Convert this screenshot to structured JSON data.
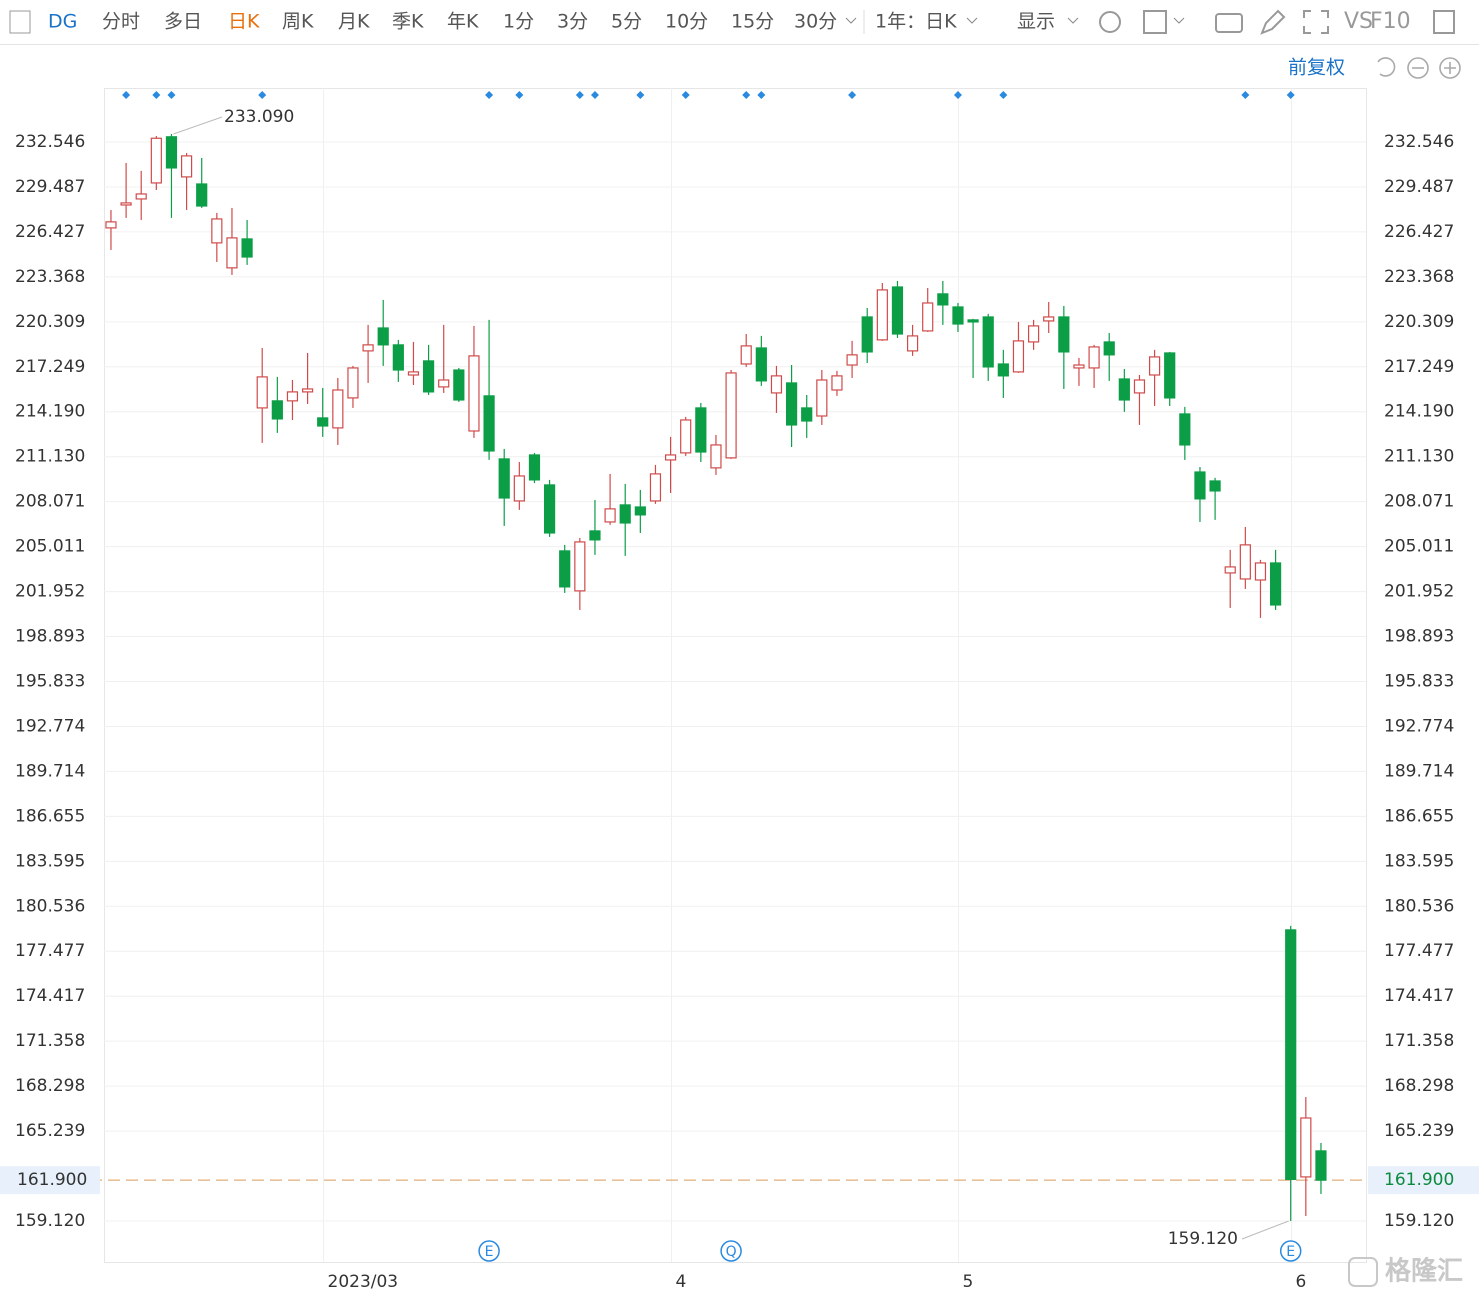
{
  "toolbar": {
    "symbol": "DG",
    "periods": [
      "分时",
      "多日",
      "日K",
      "周K",
      "月K",
      "季K",
      "年K",
      "1分",
      "3分",
      "5分",
      "10分",
      "15分",
      "30分"
    ],
    "range": "1年：日K",
    "display": "显示",
    "vs": "VS",
    "f10": "F10",
    "adjust": "前复权"
  },
  "watermark": "格隆汇",
  "chart_data": {
    "type": "candlestick",
    "categories": [
      null,
      null,
      null,
      null,
      null,
      null,
      null,
      null,
      null,
      null,
      null,
      null,
      null,
      null,
      "2023/03",
      null,
      null,
      null,
      null,
      null,
      null,
      null,
      null,
      null,
      null,
      null,
      null,
      null,
      null,
      null,
      null,
      null,
      null,
      null,
      null,
      null,
      null,
      "4",
      null,
      null,
      null,
      null,
      null,
      null,
      null,
      null,
      null,
      null,
      null,
      null,
      null,
      null,
      null,
      null,
      null,
      null,
      "5",
      null,
      null,
      null,
      null,
      null,
      null,
      null,
      null,
      null,
      null,
      null,
      null,
      null,
      null,
      null,
      null,
      null,
      null,
      null,
      null,
      null,
      "6",
      null,
      null
    ],
    "open": [
      226.7,
      228.26,
      228.67,
      229.76,
      232.9,
      230.17,
      229.69,
      225.68,
      223.98,
      225.95,
      214.45,
      214.93,
      214.93,
      215.54,
      213.77,
      213.09,
      215.13,
      218.33,
      219.89,
      218.74,
      216.69,
      217.65,
      215.88,
      217.03,
      212.88,
      215.27,
      210.98,
      208.12,
      211.25,
      209.21,
      204.72,
      202.0,
      206.08,
      206.69,
      207.85,
      207.71,
      208.12,
      210.91,
      211.39,
      214.45,
      210.37,
      211.05,
      217.44,
      218.53,
      215.47,
      216.15,
      214.45,
      213.9,
      215.67,
      217.37,
      220.64,
      219.08,
      222.68,
      218.33,
      219.69,
      222.21,
      221.32,
      220.44,
      220.64,
      217.44,
      216.9,
      218.94,
      220.37,
      220.64,
      217.17,
      217.17,
      218.94,
      216.42,
      215.47,
      216.69,
      218.19,
      214.04,
      210.09,
      209.48,
      203.22,
      202.81,
      202.74,
      203.9,
      178.93,
      162.12,
      163.89
    ],
    "high": [
      227.92,
      231.12,
      230.58,
      232.95,
      233.09,
      231.8,
      231.46,
      227.72,
      228.06,
      227.24,
      218.53,
      216.56,
      216.35,
      218.19,
      215.81,
      216.49,
      217.31,
      220.1,
      221.8,
      219.08,
      218.94,
      218.74,
      220.1,
      217.17,
      220.03,
      220.44,
      211.66,
      210.77,
      211.39,
      209.55,
      205.13,
      205.6,
      208.19,
      209.96,
      209.28,
      208.87,
      210.57,
      212.48,
      213.84,
      214.79,
      212.61,
      217.03,
      219.48,
      219.35,
      217.31,
      217.37,
      215.33,
      217.03,
      216.97,
      219.01,
      221.25,
      222.95,
      223.09,
      220.1,
      222.61,
      223.09,
      221.59,
      220.51,
      220.85,
      218.4,
      220.3,
      220.44,
      221.66,
      221.39,
      217.85,
      218.74,
      219.55,
      217.1,
      216.69,
      218.4,
      218.26,
      214.52,
      210.43,
      209.69,
      204.79,
      206.35,
      204.11,
      204.79,
      179.2,
      167.56,
      164.43
    ],
    "low": [
      225.2,
      227.38,
      227.24,
      229.28,
      227.38,
      227.92,
      228.06,
      224.38,
      223.5,
      224.18,
      212.07,
      212.75,
      213.63,
      214.72,
      212.48,
      211.93,
      214.45,
      216.15,
      217.31,
      216.22,
      216.01,
      215.33,
      215.47,
      214.86,
      212.41,
      210.91,
      206.42,
      207.51,
      209.34,
      205.67,
      201.86,
      200.7,
      204.45,
      206.49,
      204.38,
      205.94,
      207.92,
      208.66,
      211.18,
      210.77,
      209.89,
      210.98,
      217.24,
      215.95,
      214.11,
      211.79,
      212.41,
      213.29,
      215.27,
      216.49,
      217.51,
      219.01,
      219.21,
      217.99,
      219.62,
      220.1,
      219.62,
      216.49,
      216.29,
      215.13,
      216.83,
      218.4,
      219.55,
      215.74,
      215.95,
      215.81,
      216.29,
      214.18,
      213.29,
      214.58,
      214.58,
      210.91,
      206.69,
      206.83,
      200.84,
      202.13,
      200.16,
      200.7,
      159.12,
      159.46,
      160.96
    ],
    "close": [
      227.11,
      228.4,
      229.01,
      232.8,
      230.78,
      231.6,
      228.19,
      227.31,
      226.02,
      224.72,
      216.56,
      213.7,
      215.54,
      215.74,
      213.22,
      215.67,
      217.17,
      218.74,
      218.74,
      217.03,
      216.9,
      215.54,
      216.35,
      214.99,
      217.99,
      211.52,
      208.32,
      209.82,
      209.55,
      205.94,
      202.27,
      205.33,
      205.47,
      207.58,
      206.62,
      207.17,
      209.96,
      211.25,
      213.63,
      211.45,
      211.93,
      216.83,
      218.67,
      216.29,
      216.63,
      213.29,
      213.56,
      216.35,
      216.63,
      218.06,
      218.26,
      222.48,
      219.48,
      219.35,
      221.59,
      221.46,
      220.16,
      220.3,
      217.24,
      216.63,
      219.01,
      220.03,
      220.64,
      218.26,
      217.37,
      218.6,
      218.06,
      214.99,
      216.35,
      217.92,
      215.13,
      211.93,
      208.26,
      208.8,
      203.63,
      205.13,
      203.9,
      201.04,
      161.95,
      166.13,
      161.9
    ],
    "up_color": "#d04a4a",
    "down_color": "#0c9e47",
    "ylim": [
      156.33,
      236.22
    ],
    "yticks": [
      232.546,
      229.487,
      226.427,
      223.368,
      220.309,
      217.249,
      {
        "value": 214.19,
        "label": "214.190"
      },
      {
        "value": 211.13,
        "label": "211.130"
      },
      208.071,
      205.011,
      201.952,
      198.893,
      195.833,
      192.774,
      189.714,
      186.655,
      183.595,
      180.536,
      177.477,
      174.417,
      171.358,
      168.298,
      165.239,
      {
        "value": 159.12,
        "label": "159.120"
      }
    ],
    "last_price": {
      "value": 161.9,
      "label": "161.900"
    },
    "annotations": [
      "233.090",
      "159.120"
    ],
    "events": [
      "E",
      "Q",
      "E"
    ],
    "grid": true
  }
}
